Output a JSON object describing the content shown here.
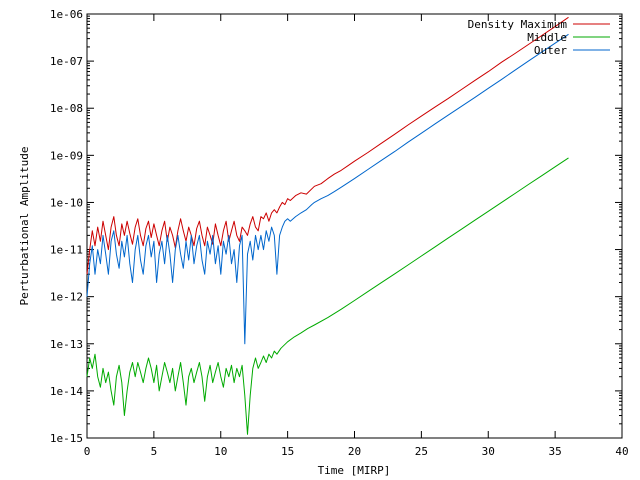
{
  "chart_data": {
    "type": "line",
    "title": "",
    "xlabel": "Time [MIRP]",
    "ylabel": "Perturbational Amplitude",
    "xlim": [
      0,
      40
    ],
    "ylim": [
      1e-15,
      1e-06
    ],
    "yscale": "log",
    "grid": false,
    "legend_position": "top-right",
    "x_ticks": [
      0,
      5,
      10,
      15,
      20,
      25,
      30,
      35,
      40
    ],
    "x_tick_labels": [
      "0",
      "5",
      "10",
      "15",
      "20",
      "25",
      "30",
      "35",
      "40"
    ],
    "y_tick_exponents": [
      -15,
      -14,
      -13,
      -12,
      -11,
      -10,
      -9,
      -8,
      -7,
      -6
    ],
    "y_tick_labels": [
      "1e-15",
      "1e-14",
      "1e-13",
      "1e-12",
      "1e-11",
      "1e-10",
      "1e-09",
      "1e-08",
      "1e-07",
      "1e-06"
    ],
    "series": [
      {
        "name": "Density Maximum",
        "color": "#cc0000",
        "points": [
          [
            0,
            3e-12
          ],
          [
            0.2,
            1e-11
          ],
          [
            0.4,
            2.5e-11
          ],
          [
            0.6,
            1.2e-11
          ],
          [
            0.8,
            3e-11
          ],
          [
            1.0,
            1.5e-11
          ],
          [
            1.2,
            4e-11
          ],
          [
            1.4,
            2e-11
          ],
          [
            1.6,
            1e-11
          ],
          [
            1.8,
            3e-11
          ],
          [
            2.0,
            5e-11
          ],
          [
            2.2,
            2e-11
          ],
          [
            2.4,
            1.2e-11
          ],
          [
            2.6,
            3.5e-11
          ],
          [
            2.8,
            2e-11
          ],
          [
            3.0,
            4e-11
          ],
          [
            3.2,
            2.2e-11
          ],
          [
            3.4,
            1.3e-11
          ],
          [
            3.6,
            3e-11
          ],
          [
            3.8,
            4.5e-11
          ],
          [
            4.0,
            2e-11
          ],
          [
            4.2,
            1.2e-11
          ],
          [
            4.4,
            2.8e-11
          ],
          [
            4.6,
            4e-11
          ],
          [
            4.8,
            1.8e-11
          ],
          [
            5.0,
            3.5e-11
          ],
          [
            5.2,
            2e-11
          ],
          [
            5.4,
            1.2e-11
          ],
          [
            5.6,
            2.5e-11
          ],
          [
            5.8,
            4e-11
          ],
          [
            6.0,
            1.5e-11
          ],
          [
            6.2,
            3e-11
          ],
          [
            6.4,
            2e-11
          ],
          [
            6.6,
            1.1e-11
          ],
          [
            6.8,
            2.5e-11
          ],
          [
            7.0,
            4.5e-11
          ],
          [
            7.2,
            2.5e-11
          ],
          [
            7.4,
            1.5e-11
          ],
          [
            7.6,
            3e-11
          ],
          [
            7.8,
            2e-11
          ],
          [
            8.0,
            1.2e-11
          ],
          [
            8.2,
            2.8e-11
          ],
          [
            8.4,
            4e-11
          ],
          [
            8.6,
            2e-11
          ],
          [
            8.8,
            1.2e-11
          ],
          [
            9.0,
            3e-11
          ],
          [
            9.2,
            2e-11
          ],
          [
            9.4,
            1.3e-11
          ],
          [
            9.6,
            3.5e-11
          ],
          [
            9.8,
            2e-11
          ],
          [
            10.0,
            1.2e-11
          ],
          [
            10.2,
            2.5e-11
          ],
          [
            10.4,
            4e-11
          ],
          [
            10.6,
            1.5e-11
          ],
          [
            10.8,
            2.5e-11
          ],
          [
            11.0,
            4e-11
          ],
          [
            11.2,
            2e-11
          ],
          [
            11.4,
            1.5e-11
          ],
          [
            11.6,
            3e-11
          ],
          [
            11.8,
            2.5e-11
          ],
          [
            12.0,
            2e-11
          ],
          [
            12.2,
            3.5e-11
          ],
          [
            12.4,
            5e-11
          ],
          [
            12.6,
            3e-11
          ],
          [
            12.8,
            2.5e-11
          ],
          [
            13.0,
            5e-11
          ],
          [
            13.2,
            4.5e-11
          ],
          [
            13.4,
            6e-11
          ],
          [
            13.6,
            4e-11
          ],
          [
            13.8,
            6e-11
          ],
          [
            14.0,
            7e-11
          ],
          [
            14.2,
            6e-11
          ],
          [
            14.4,
            8e-11
          ],
          [
            14.6,
            1e-10
          ],
          [
            14.8,
            9e-11
          ],
          [
            15.0,
            1.2e-10
          ],
          [
            15.2,
            1.1e-10
          ],
          [
            15.6,
            1.4e-10
          ],
          [
            16.0,
            1.6e-10
          ],
          [
            16.4,
            1.5e-10
          ],
          [
            17.0,
            2.2e-10
          ],
          [
            17.5,
            2.5e-10
          ],
          [
            18.0,
            3.2e-10
          ],
          [
            18.5,
            4e-10
          ],
          [
            19.0,
            4.8e-10
          ],
          [
            19.5,
            6e-10
          ],
          [
            20.0,
            7.5e-10
          ],
          [
            21.0,
            1.15e-09
          ],
          [
            22.0,
            1.8e-09
          ],
          [
            23.0,
            2.8e-09
          ],
          [
            24.0,
            4.4e-09
          ],
          [
            25.0,
            6.8e-09
          ],
          [
            26.0,
            1.05e-08
          ],
          [
            27.0,
            1.6e-08
          ],
          [
            28.0,
            2.5e-08
          ],
          [
            29.0,
            3.9e-08
          ],
          [
            30.0,
            6e-08
          ],
          [
            31.0,
            9.5e-08
          ],
          [
            32.0,
            1.45e-07
          ],
          [
            33.0,
            2.25e-07
          ],
          [
            34.0,
            3.5e-07
          ],
          [
            35.0,
            5.4e-07
          ],
          [
            36.0,
            8.5e-07
          ]
        ]
      },
      {
        "name": "Middle",
        "color": "#00aa00",
        "points": [
          [
            0,
            2e-14
          ],
          [
            0.2,
            5e-14
          ],
          [
            0.4,
            3e-14
          ],
          [
            0.6,
            6e-14
          ],
          [
            0.8,
            2e-14
          ],
          [
            1.0,
            1.2e-14
          ],
          [
            1.2,
            3e-14
          ],
          [
            1.4,
            1.5e-14
          ],
          [
            1.6,
            2.5e-14
          ],
          [
            1.8,
            1e-14
          ],
          [
            2.0,
            5e-15
          ],
          [
            2.2,
            2e-14
          ],
          [
            2.4,
            3.5e-14
          ],
          [
            2.6,
            1.5e-14
          ],
          [
            2.8,
            3e-15
          ],
          [
            3.0,
            1e-14
          ],
          [
            3.2,
            2.5e-14
          ],
          [
            3.4,
            4e-14
          ],
          [
            3.6,
            2e-14
          ],
          [
            3.8,
            4e-14
          ],
          [
            4.0,
            2.5e-14
          ],
          [
            4.2,
            1.5e-14
          ],
          [
            4.4,
            3e-14
          ],
          [
            4.6,
            5e-14
          ],
          [
            4.8,
            3e-14
          ],
          [
            5.0,
            1.5e-14
          ],
          [
            5.2,
            3.5e-14
          ],
          [
            5.4,
            1e-14
          ],
          [
            5.6,
            2e-14
          ],
          [
            5.8,
            4e-14
          ],
          [
            6.0,
            2.5e-14
          ],
          [
            6.2,
            1.5e-14
          ],
          [
            6.4,
            3e-14
          ],
          [
            6.6,
            1e-14
          ],
          [
            6.8,
            2e-14
          ],
          [
            7.0,
            4e-14
          ],
          [
            7.2,
            1.5e-14
          ],
          [
            7.4,
            5e-15
          ],
          [
            7.6,
            2e-14
          ],
          [
            7.8,
            3e-14
          ],
          [
            8.0,
            1.5e-14
          ],
          [
            8.2,
            2.5e-14
          ],
          [
            8.4,
            4e-14
          ],
          [
            8.6,
            2e-14
          ],
          [
            8.8,
            6e-15
          ],
          [
            9.0,
            2e-14
          ],
          [
            9.2,
            3.5e-14
          ],
          [
            9.4,
            1.5e-14
          ],
          [
            9.6,
            2.5e-14
          ],
          [
            9.8,
            4e-14
          ],
          [
            10.0,
            2e-14
          ],
          [
            10.2,
            1.2e-14
          ],
          [
            10.4,
            3e-14
          ],
          [
            10.6,
            2e-14
          ],
          [
            10.8,
            3.5e-14
          ],
          [
            11.0,
            1.5e-14
          ],
          [
            11.2,
            3e-14
          ],
          [
            11.4,
            2e-14
          ],
          [
            11.6,
            3.5e-14
          ],
          [
            11.8,
            8e-15
          ],
          [
            12.0,
            1.2e-15
          ],
          [
            12.2,
            8e-15
          ],
          [
            12.4,
            3e-14
          ],
          [
            12.6,
            5e-14
          ],
          [
            12.8,
            3e-14
          ],
          [
            13.0,
            4e-14
          ],
          [
            13.2,
            5.5e-14
          ],
          [
            13.4,
            4e-14
          ],
          [
            13.6,
            6e-14
          ],
          [
            13.8,
            5e-14
          ],
          [
            14.0,
            7e-14
          ],
          [
            14.2,
            6e-14
          ],
          [
            14.5,
            8e-14
          ],
          [
            15.0,
            1.1e-13
          ],
          [
            15.5,
            1.4e-13
          ],
          [
            16.0,
            1.7e-13
          ],
          [
            16.5,
            2.1e-13
          ],
          [
            17.0,
            2.5e-13
          ],
          [
            18.0,
            3.6e-13
          ],
          [
            19.0,
            5.4e-13
          ],
          [
            20.0,
            8.3e-13
          ],
          [
            21.0,
            1.28e-12
          ],
          [
            22.0,
            1.98e-12
          ],
          [
            23.0,
            3.05e-12
          ],
          [
            24.0,
            4.7e-12
          ],
          [
            25.0,
            7.3e-12
          ],
          [
            26.0,
            1.13e-11
          ],
          [
            27.0,
            1.75e-11
          ],
          [
            28.0,
            2.7e-11
          ],
          [
            29.0,
            4.2e-11
          ],
          [
            30.0,
            6.5e-11
          ],
          [
            31.0,
            1e-10
          ],
          [
            32.0,
            1.55e-10
          ],
          [
            33.0,
            2.4e-10
          ],
          [
            34.0,
            3.7e-10
          ],
          [
            35.0,
            5.7e-10
          ],
          [
            36.0,
            8.8e-10
          ]
        ]
      },
      {
        "name": "Outer",
        "color": "#0066cc",
        "points": [
          [
            0,
            1e-12
          ],
          [
            0.2,
            5e-12
          ],
          [
            0.4,
            1.2e-11
          ],
          [
            0.6,
            3e-12
          ],
          [
            0.8,
            1e-11
          ],
          [
            1.0,
            5e-12
          ],
          [
            1.2,
            2e-11
          ],
          [
            1.4,
            8e-12
          ],
          [
            1.6,
            3e-12
          ],
          [
            1.8,
            1.5e-11
          ],
          [
            2.0,
            2.5e-11
          ],
          [
            2.2,
            8e-12
          ],
          [
            2.4,
            4e-12
          ],
          [
            2.6,
            1.5e-11
          ],
          [
            2.8,
            7e-12
          ],
          [
            3.0,
            2e-11
          ],
          [
            3.2,
            5e-12
          ],
          [
            3.4,
            2e-12
          ],
          [
            3.6,
            1e-11
          ],
          [
            3.8,
            2e-11
          ],
          [
            4.0,
            6e-12
          ],
          [
            4.2,
            3e-12
          ],
          [
            4.4,
            1.2e-11
          ],
          [
            4.6,
            2e-11
          ],
          [
            4.8,
            7e-12
          ],
          [
            5.0,
            1.5e-11
          ],
          [
            5.2,
            2e-12
          ],
          [
            5.4,
            8e-12
          ],
          [
            5.6,
            1.5e-11
          ],
          [
            5.8,
            5e-12
          ],
          [
            6.0,
            2e-11
          ],
          [
            6.2,
            8e-12
          ],
          [
            6.4,
            2e-12
          ],
          [
            6.6,
            1e-11
          ],
          [
            6.8,
            2e-11
          ],
          [
            7.0,
            8e-12
          ],
          [
            7.2,
            4e-12
          ],
          [
            7.4,
            1.5e-11
          ],
          [
            7.6,
            6e-12
          ],
          [
            7.8,
            2e-11
          ],
          [
            8.0,
            5e-12
          ],
          [
            8.2,
            1.2e-11
          ],
          [
            8.4,
            2e-11
          ],
          [
            8.6,
            6e-12
          ],
          [
            8.8,
            3e-12
          ],
          [
            9.0,
            1.5e-11
          ],
          [
            9.2,
            8e-12
          ],
          [
            9.4,
            2e-11
          ],
          [
            9.6,
            5e-12
          ],
          [
            9.8,
            1.2e-11
          ],
          [
            10.0,
            3e-12
          ],
          [
            10.2,
            1.5e-11
          ],
          [
            10.4,
            8e-12
          ],
          [
            10.6,
            2e-11
          ],
          [
            10.8,
            5e-12
          ],
          [
            11.0,
            1e-11
          ],
          [
            11.2,
            2e-12
          ],
          [
            11.4,
            1.2e-11
          ],
          [
            11.6,
            2e-11
          ],
          [
            11.8,
            1e-13
          ],
          [
            12.0,
            8e-12
          ],
          [
            12.2,
            1.5e-11
          ],
          [
            12.4,
            6e-12
          ],
          [
            12.6,
            2e-11
          ],
          [
            12.8,
            1e-11
          ],
          [
            13.0,
            2e-11
          ],
          [
            13.2,
            1e-11
          ],
          [
            13.4,
            2.5e-11
          ],
          [
            13.6,
            1.5e-11
          ],
          [
            13.8,
            3e-11
          ],
          [
            14.0,
            2e-11
          ],
          [
            14.2,
            3e-12
          ],
          [
            14.4,
            2e-11
          ],
          [
            14.6,
            3e-11
          ],
          [
            14.8,
            4e-11
          ],
          [
            15.0,
            4.5e-11
          ],
          [
            15.2,
            4e-11
          ],
          [
            15.6,
            5e-11
          ],
          [
            16.0,
            6e-11
          ],
          [
            16.4,
            7e-11
          ],
          [
            16.8,
            9e-11
          ],
          [
            17.0,
            1e-10
          ],
          [
            17.5,
            1.2e-10
          ],
          [
            18.0,
            1.4e-10
          ],
          [
            18.5,
            1.7e-10
          ],
          [
            19.0,
            2.1e-10
          ],
          [
            19.5,
            2.6e-10
          ],
          [
            20.0,
            3.2e-10
          ],
          [
            21.0,
            5e-10
          ],
          [
            22.0,
            7.8e-10
          ],
          [
            23.0,
            1.2e-09
          ],
          [
            24.0,
            1.9e-09
          ],
          [
            25.0,
            2.95e-09
          ],
          [
            26.0,
            4.6e-09
          ],
          [
            27.0,
            7.1e-09
          ],
          [
            28.0,
            1.1e-08
          ],
          [
            29.0,
            1.7e-08
          ],
          [
            30.0,
            2.65e-08
          ],
          [
            31.0,
            4.1e-08
          ],
          [
            32.0,
            6.4e-08
          ],
          [
            33.0,
            1e-07
          ],
          [
            34.0,
            1.55e-07
          ],
          [
            35.0,
            2.4e-07
          ],
          [
            36.0,
            3.7e-07
          ]
        ]
      }
    ]
  }
}
